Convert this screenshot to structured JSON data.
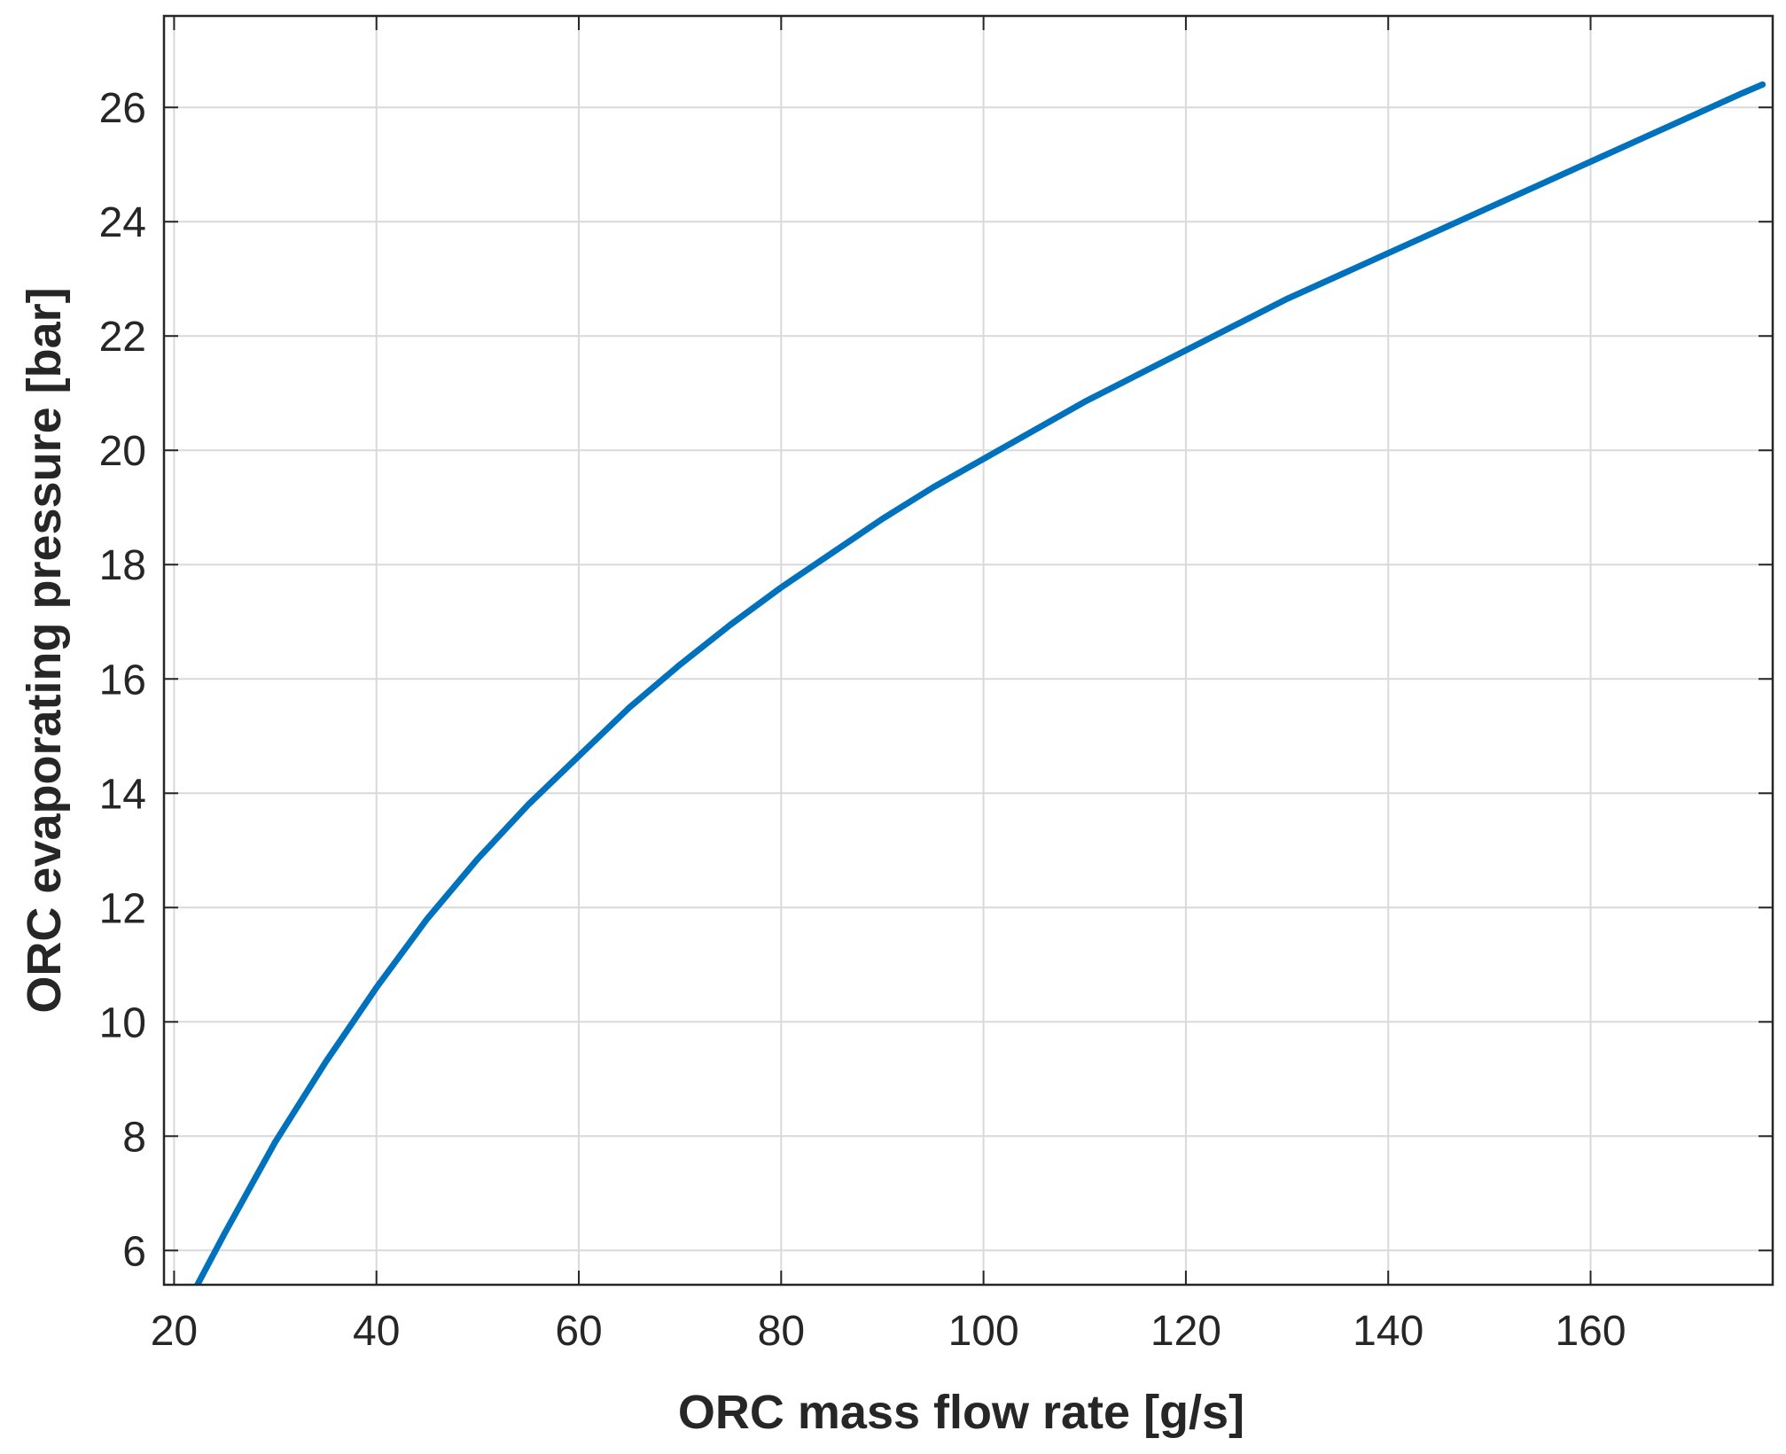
{
  "chart_data": {
    "type": "line",
    "title": "",
    "xlabel": "ORC mass flow rate [g/s]",
    "ylabel": "ORC evaporating pressure [bar]",
    "xlim": [
      19,
      178
    ],
    "ylim": [
      5.4,
      27.6
    ],
    "xticks": [
      20,
      40,
      60,
      80,
      100,
      120,
      140,
      160
    ],
    "yticks": [
      6,
      8,
      10,
      12,
      14,
      16,
      18,
      20,
      22,
      24,
      26
    ],
    "grid": true,
    "series": [
      {
        "name": "ORC evaporating pressure",
        "color": "#0072bd",
        "x": [
          22.3,
          25,
          30,
          35,
          40,
          45,
          50,
          55,
          60,
          65,
          70,
          75,
          80,
          85,
          90,
          95,
          100,
          105,
          110,
          115,
          120,
          125,
          130,
          135,
          140,
          145,
          150,
          155,
          160,
          165,
          170,
          175,
          177
        ],
        "y": [
          5.4,
          6.3,
          7.9,
          9.3,
          10.6,
          11.8,
          12.85,
          13.8,
          14.65,
          15.5,
          16.25,
          16.95,
          17.6,
          18.2,
          18.8,
          19.35,
          19.85,
          20.35,
          20.85,
          21.3,
          21.75,
          22.2,
          22.65,
          23.05,
          23.45,
          23.85,
          24.25,
          24.65,
          25.05,
          25.45,
          25.85,
          26.25,
          26.4
        ]
      }
    ]
  }
}
